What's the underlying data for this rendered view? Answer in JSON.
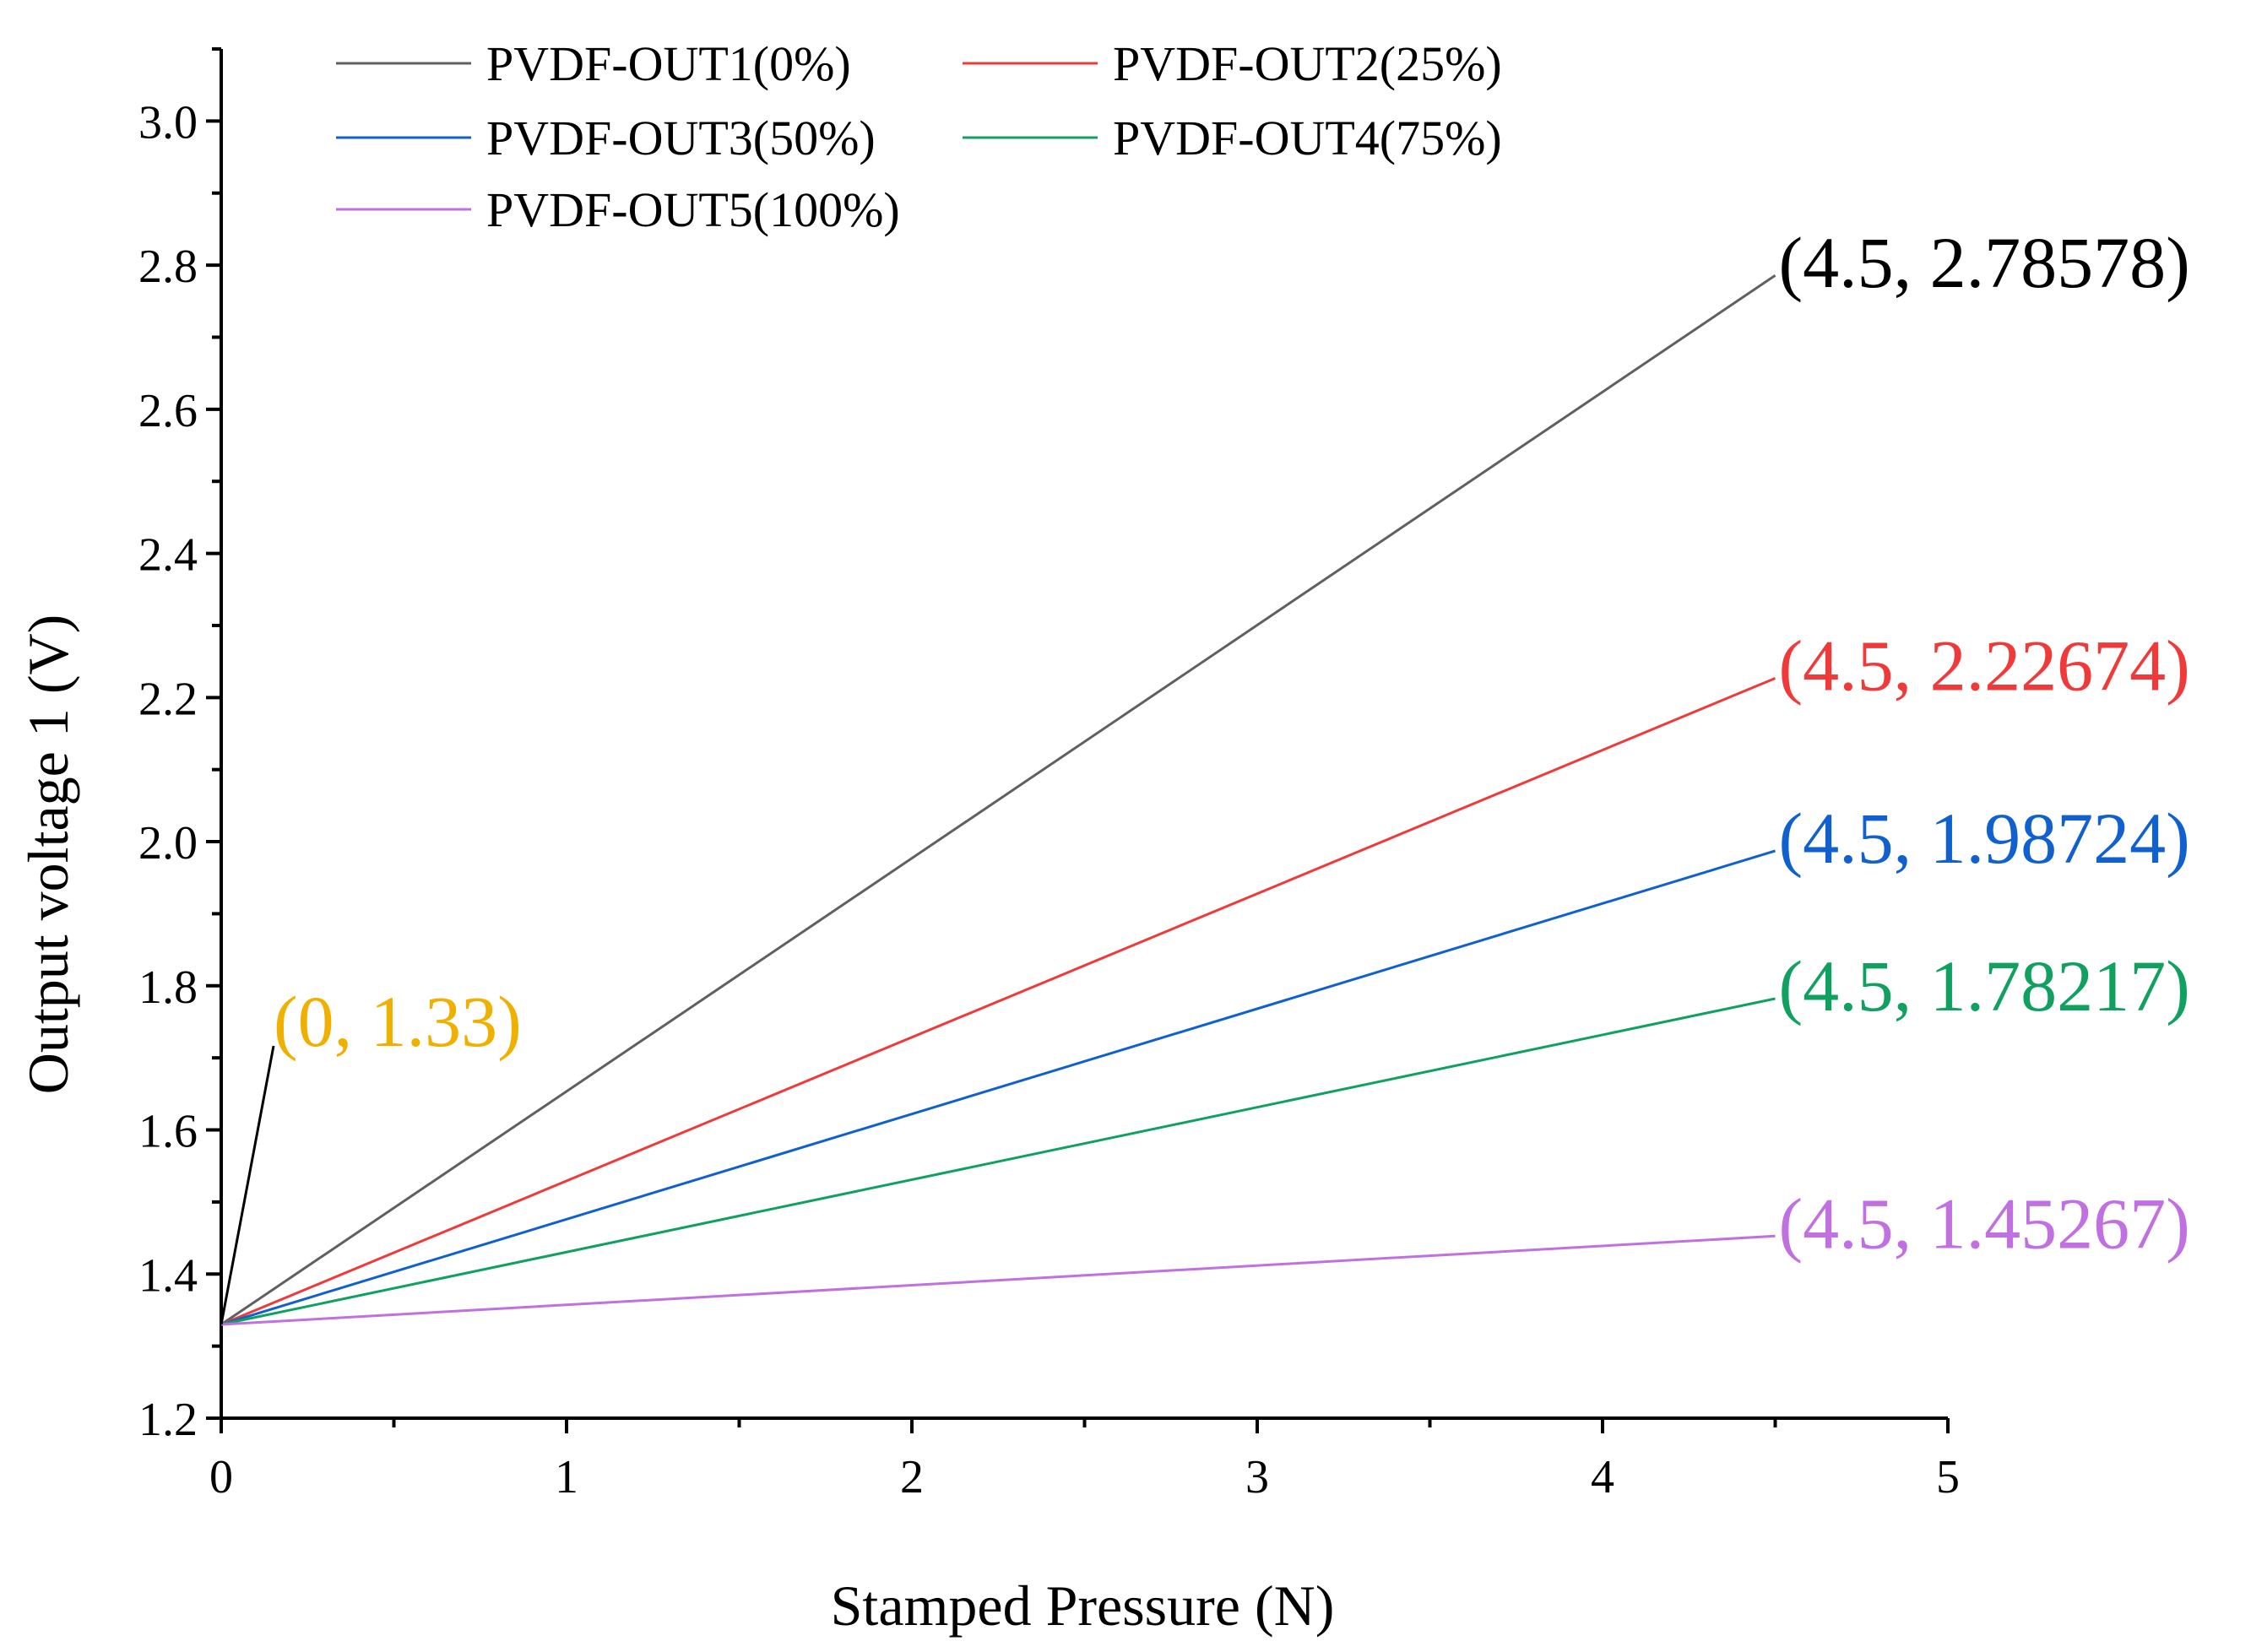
{
  "chart_data": {
    "type": "line",
    "xlabel": "Stamped Pressure (N)",
    "ylabel": "Output voltage 1 (V)",
    "xlim": [
      0,
      5
    ],
    "ylim": [
      1.2,
      3.1
    ],
    "x_ticks": [
      0,
      1,
      2,
      3,
      4,
      5
    ],
    "x_tick_labels": [
      "0",
      "1",
      "2",
      "3",
      "4",
      "5"
    ],
    "y_ticks": [
      1.2,
      1.4,
      1.6,
      1.8,
      2.0,
      2.2,
      2.4,
      2.6,
      2.8,
      3.0
    ],
    "y_tick_labels": [
      "1.2",
      "1.4",
      "1.6",
      "1.8",
      "2.0",
      "2.2",
      "2.4",
      "2.6",
      "2.8",
      "3.0"
    ],
    "grid": false,
    "legend_position": "top-left",
    "series": [
      {
        "name": "PVDF-OUT1(0%)",
        "color": "#606060",
        "x": [
          0,
          4.5
        ],
        "y": [
          1.33,
          2.78578
        ]
      },
      {
        "name": "PVDF-OUT2(25%)",
        "color": "#f03a3a",
        "x": [
          0,
          4.5
        ],
        "y": [
          1.33,
          2.22674
        ]
      },
      {
        "name": "PVDF-OUT3(50%)",
        "color": "#1060d0",
        "x": [
          0,
          4.5
        ],
        "y": [
          1.33,
          1.98724
        ]
      },
      {
        "name": "PVDF-OUT4(75%)",
        "color": "#10a060",
        "x": [
          0,
          4.5
        ],
        "y": [
          1.33,
          1.78217
        ]
      },
      {
        "name": "PVDF-OUT5(100%)",
        "color": "#c070e0",
        "x": [
          0,
          4.5
        ],
        "y": [
          1.33,
          1.45267
        ]
      }
    ],
    "annotations": [
      {
        "text": "(4.5, 2.78578)",
        "color": "#000000",
        "x": 4.5,
        "y": 2.78578
      },
      {
        "text": "(4.5, 2.22674)",
        "color": "#f03a3a",
        "x": 4.5,
        "y": 2.22674
      },
      {
        "text": "(4.5, 1.98724)",
        "color": "#1060d0",
        "x": 4.5,
        "y": 1.98724
      },
      {
        "text": "(4.5, 1.78217)",
        "color": "#10a060",
        "x": 4.5,
        "y": 1.78217
      },
      {
        "text": "(4.5, 1.45267)",
        "color": "#c070e0",
        "x": 4.5,
        "y": 1.45267
      },
      {
        "text": "(0, 1.33)",
        "color": "#f0b000",
        "x": 0,
        "y": 1.33
      }
    ]
  }
}
